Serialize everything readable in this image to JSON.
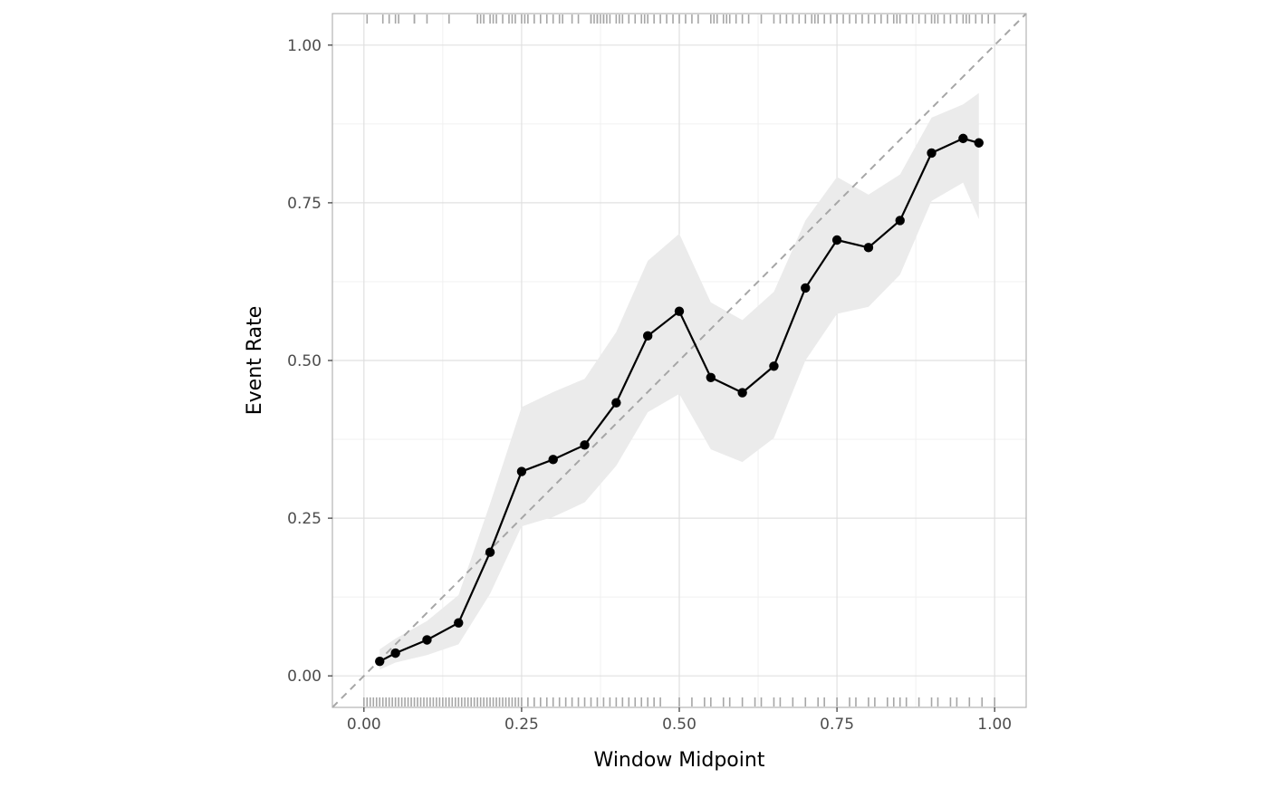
{
  "chart_data": {
    "type": "line",
    "xlabel": "Window Midpoint",
    "ylabel": "Event Rate",
    "xlim": [
      -0.05,
      1.05
    ],
    "ylim": [
      -0.05,
      1.05
    ],
    "x_ticks": [
      0,
      0.25,
      0.5,
      0.75,
      1
    ],
    "x_tick_labels": [
      "0.00",
      "0.25",
      "0.50",
      "0.75",
      "1.00"
    ],
    "y_ticks": [
      0,
      0.25,
      0.5,
      0.75,
      1
    ],
    "y_tick_labels": [
      "0.00",
      "0.25",
      "0.50",
      "0.75",
      "1.00"
    ],
    "grid": true,
    "reference_line": {
      "from": [
        0,
        0
      ],
      "to": [
        1,
        1
      ],
      "style": "dashed",
      "color": "#a6a6a6"
    },
    "series": [
      {
        "x": [
          0.025,
          0.05,
          0.1,
          0.15,
          0.2,
          0.25,
          0.3,
          0.35,
          0.4,
          0.45,
          0.5,
          0.55,
          0.6,
          0.65,
          0.7,
          0.75,
          0.8,
          0.85,
          0.9,
          0.95,
          0.975
        ],
        "values": [
          0.023,
          0.036,
          0.057,
          0.084,
          0.196,
          0.324,
          0.343,
          0.366,
          0.433,
          0.539,
          0.578,
          0.473,
          0.449,
          0.491,
          0.615,
          0.691,
          0.679,
          0.722,
          0.829,
          0.852,
          0.845
        ],
        "lower": [
          0.01,
          0.021,
          0.033,
          0.05,
          0.13,
          0.237,
          0.252,
          0.275,
          0.333,
          0.418,
          0.447,
          0.359,
          0.339,
          0.377,
          0.5,
          0.574,
          0.585,
          0.636,
          0.753,
          0.782,
          0.724
        ],
        "upper": [
          0.042,
          0.059,
          0.087,
          0.128,
          0.273,
          0.426,
          0.45,
          0.471,
          0.545,
          0.658,
          0.701,
          0.592,
          0.564,
          0.609,
          0.722,
          0.791,
          0.763,
          0.795,
          0.885,
          0.906,
          0.924
        ],
        "color": "#000000",
        "ribbon_color": "#ebebeb"
      }
    ],
    "rug_top": [
      0.005,
      0.03,
      0.04,
      0.05,
      0.055,
      0.08,
      0.08,
      0.1,
      0.135,
      0.18,
      0.185,
      0.19,
      0.2,
      0.205,
      0.21,
      0.22,
      0.23,
      0.235,
      0.24,
      0.25,
      0.255,
      0.26,
      0.27,
      0.28,
      0.29,
      0.3,
      0.31,
      0.315,
      0.33,
      0.34,
      0.36,
      0.365,
      0.37,
      0.38,
      0.36,
      0.37,
      0.375,
      0.38,
      0.385,
      0.39,
      0.4,
      0.405,
      0.41,
      0.42,
      0.43,
      0.44,
      0.445,
      0.45,
      0.46,
      0.47,
      0.48,
      0.49,
      0.5,
      0.51,
      0.52,
      0.53,
      0.55,
      0.555,
      0.56,
      0.57,
      0.575,
      0.58,
      0.59,
      0.6,
      0.61,
      0.63,
      0.65,
      0.66,
      0.67,
      0.68,
      0.69,
      0.7,
      0.71,
      0.715,
      0.72,
      0.73,
      0.74,
      0.75,
      0.76,
      0.77,
      0.78,
      0.79,
      0.8,
      0.81,
      0.82,
      0.83,
      0.84,
      0.845,
      0.85,
      0.86,
      0.87,
      0.88,
      0.89,
      0.9,
      0.905,
      0.91,
      0.92,
      0.93,
      0.94,
      0.95,
      0.955,
      0.96,
      0.97,
      0.98,
      0.99,
      1.0
    ],
    "rug_bottom": [
      0.0,
      0.005,
      0.01,
      0.015,
      0.02,
      0.025,
      0.03,
      0.035,
      0.04,
      0.045,
      0.05,
      0.055,
      0.06,
      0.065,
      0.07,
      0.075,
      0.08,
      0.085,
      0.09,
      0.095,
      0.1,
      0.105,
      0.11,
      0.115,
      0.12,
      0.125,
      0.13,
      0.135,
      0.14,
      0.145,
      0.15,
      0.155,
      0.16,
      0.165,
      0.17,
      0.175,
      0.18,
      0.185,
      0.19,
      0.195,
      0.2,
      0.205,
      0.21,
      0.215,
      0.22,
      0.225,
      0.23,
      0.235,
      0.24,
      0.245,
      0.25,
      0.26,
      0.27,
      0.28,
      0.29,
      0.3,
      0.31,
      0.32,
      0.33,
      0.34,
      0.35,
      0.36,
      0.37,
      0.38,
      0.39,
      0.4,
      0.41,
      0.42,
      0.43,
      0.44,
      0.45,
      0.46,
      0.47,
      0.5,
      0.52,
      0.54,
      0.55,
      0.57,
      0.58,
      0.6,
      0.62,
      0.63,
      0.65,
      0.66,
      0.68,
      0.7,
      0.72,
      0.73,
      0.75,
      0.77,
      0.78,
      0.8,
      0.81,
      0.83,
      0.84,
      0.85,
      0.86,
      0.88,
      0.9,
      0.91,
      0.93,
      0.94,
      0.96,
      0.98,
      1.0
    ]
  }
}
